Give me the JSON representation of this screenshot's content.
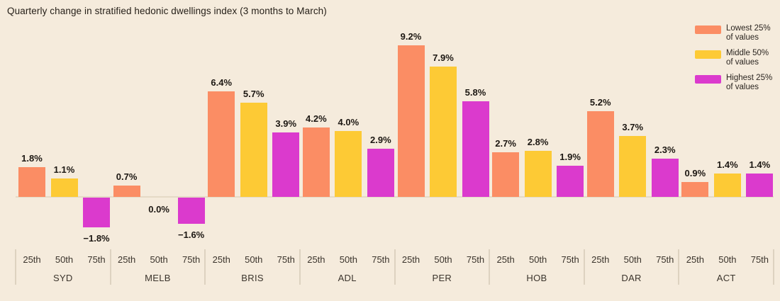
{
  "title": "Quarterly change in stratified hedonic dwellings index (3 months to March)",
  "colors": {
    "background": "#f5ebdc",
    "lowest": "#fb8d64",
    "middle": "#fdca35",
    "highest": "#db3acd",
    "baseline": "#e5dac6",
    "separator": "#ddd2c0"
  },
  "legend": [
    {
      "line1": "Lowest 25%",
      "line2": "of values",
      "color_key": "lowest"
    },
    {
      "line1": "Middle 50%",
      "line2": "of values",
      "color_key": "middle"
    },
    {
      "line1": "Highest 25%",
      "line2": "of values",
      "color_key": "highest"
    }
  ],
  "chart_data": {
    "type": "bar",
    "title": "Quarterly change in stratified hedonic dwellings index (3 months to March)",
    "categories": [
      "SYD",
      "MELB",
      "BRIS",
      "ADL",
      "PER",
      "HOB",
      "DAR",
      "ACT"
    ],
    "percentile_ticks": [
      "25th",
      "50th",
      "75th"
    ],
    "series": [
      {
        "name": "Lowest 25% of values",
        "color": "#fb8d64",
        "values": [
          1.8,
          0.7,
          6.4,
          4.2,
          9.2,
          2.7,
          5.2,
          0.9
        ],
        "labels": [
          "1.8%",
          "0.7%",
          "6.4%",
          "4.2%",
          "9.2%",
          "2.7%",
          "5.2%",
          "0.9%"
        ]
      },
      {
        "name": "Middle 50% of values",
        "color": "#fdca35",
        "values": [
          1.1,
          0.0,
          5.7,
          4.0,
          7.9,
          2.8,
          3.7,
          1.4
        ],
        "labels": [
          "1.1%",
          "0.0%",
          "5.7%",
          "4.0%",
          "7.9%",
          "2.8%",
          "3.7%",
          "1.4%"
        ]
      },
      {
        "name": "Highest 25% of values",
        "color": "#db3acd",
        "values": [
          -1.8,
          -1.6,
          3.9,
          2.9,
          5.8,
          1.9,
          2.3,
          1.4
        ],
        "labels": [
          "−1.8%",
          "−1.6%",
          "3.9%",
          "2.9%",
          "5.8%",
          "1.9%",
          "2.3%",
          "1.4%"
        ]
      }
    ],
    "ylim": [
      -2.5,
      10.5
    ],
    "grid": false,
    "axis": "zero-baseline",
    "legend_position": "top-right"
  }
}
